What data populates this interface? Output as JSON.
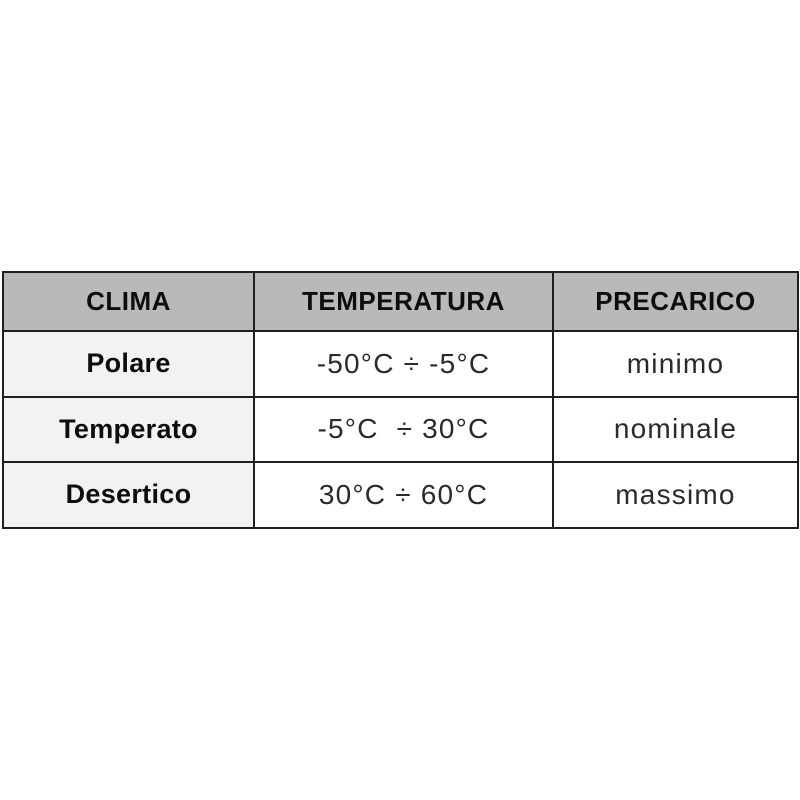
{
  "table": {
    "title": "clima-precarico-table",
    "headers": {
      "clima": "CLIMA",
      "temperatura": "TEMPERATURA",
      "precarico": "PRECARICO"
    },
    "rows": [
      {
        "clima": "Polare",
        "temperatura": "-50°C ÷ -5°C",
        "precarico": "minimo"
      },
      {
        "clima": "Temperato",
        "temperatura": "-5°C  ÷ 30°C",
        "precarico": "nominale"
      },
      {
        "clima": "Desertico",
        "temperatura": "30°C ÷ 60°C",
        "precarico": "massimo"
      }
    ],
    "colors": {
      "header_bg": "#b9b9b9",
      "row_label_bg": "#f2f2f2",
      "cell_bg": "#ffffff",
      "border": "#1f1f1f",
      "header_text": "#0d0d0d",
      "data_text": "#2a2a2a",
      "page_bg": "#ffffff"
    }
  }
}
